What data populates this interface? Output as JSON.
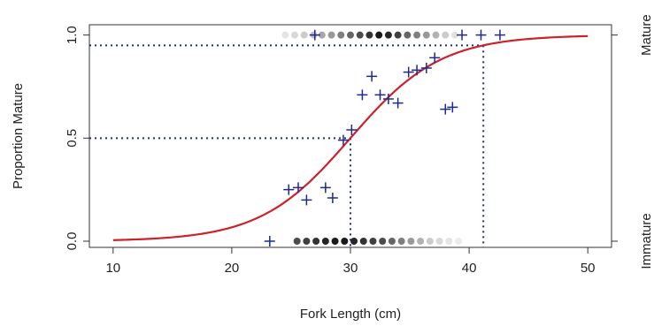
{
  "chart_data": {
    "type": "scatter",
    "title": "",
    "xlabel": "Fork Length (cm)",
    "ylabel": "Proportion Mature",
    "right_axis_labels": [
      "Immature",
      "Mature"
    ],
    "xlim": [
      8,
      52
    ],
    "ylim": [
      -0.03,
      1.05
    ],
    "x_ticks": [
      10,
      20,
      30,
      40,
      50
    ],
    "x_tick_labels": [
      "10",
      "20",
      "30",
      "40",
      "50"
    ],
    "y_ticks": [
      0.0,
      0.5,
      1.0
    ],
    "y_tick_labels": [
      "0.0",
      "0.5",
      "1.0"
    ],
    "grid": false,
    "colors": {
      "curve": "#cc2229",
      "points": "#1f2a8a",
      "reference": "#1f2a8a",
      "dots": "#000000"
    },
    "logistic_curve": {
      "x_start": 10,
      "x_end": 50,
      "L50": 30,
      "L95": 41.2
    },
    "reference_lines": [
      {
        "p": 0.5,
        "x": 30.0
      },
      {
        "p": 0.95,
        "x": 41.2
      }
    ],
    "proportion_points": [
      {
        "x": 23.2,
        "y": 0.0
      },
      {
        "x": 24.8,
        "y": 0.25
      },
      {
        "x": 25.6,
        "y": 0.26
      },
      {
        "x": 26.3,
        "y": 0.2
      },
      {
        "x": 27.0,
        "y": 1.0
      },
      {
        "x": 27.9,
        "y": 0.26
      },
      {
        "x": 28.5,
        "y": 0.21
      },
      {
        "x": 29.4,
        "y": 0.49
      },
      {
        "x": 30.1,
        "y": 0.54
      },
      {
        "x": 31.0,
        "y": 0.71
      },
      {
        "x": 31.8,
        "y": 0.8
      },
      {
        "x": 32.5,
        "y": 0.71
      },
      {
        "x": 33.2,
        "y": 0.69
      },
      {
        "x": 34.0,
        "y": 0.67
      },
      {
        "x": 34.9,
        "y": 0.82
      },
      {
        "x": 35.6,
        "y": 0.83
      },
      {
        "x": 36.4,
        "y": 0.84
      },
      {
        "x": 37.1,
        "y": 0.89
      },
      {
        "x": 38.0,
        "y": 0.64
      },
      {
        "x": 38.6,
        "y": 0.65
      },
      {
        "x": 39.4,
        "y": 1.0
      },
      {
        "x": 41.0,
        "y": 1.0
      },
      {
        "x": 42.6,
        "y": 1.0
      }
    ],
    "mature_dots": {
      "x": [
        24.5,
        25.3,
        26.1,
        26.9,
        27.6,
        28.4,
        29.2,
        30.0,
        30.8,
        31.6,
        32.4,
        33.2,
        34.0,
        34.8,
        35.6,
        36.4,
        37.2,
        38.0,
        38.8
      ],
      "opacity": [
        0.1,
        0.15,
        0.2,
        0.25,
        0.35,
        0.4,
        0.5,
        0.6,
        0.7,
        0.8,
        0.9,
        0.85,
        0.75,
        0.6,
        0.5,
        0.4,
        0.3,
        0.2,
        0.12
      ]
    },
    "immature_dots": {
      "x": [
        25.5,
        26.3,
        27.1,
        27.9,
        28.7,
        29.5,
        30.3,
        31.1,
        31.9,
        32.7,
        33.5,
        34.3,
        35.1,
        35.9,
        36.7,
        37.5,
        38.3,
        39.1
      ],
      "opacity": [
        0.7,
        0.75,
        0.8,
        0.85,
        0.9,
        0.9,
        0.85,
        0.8,
        0.75,
        0.7,
        0.6,
        0.5,
        0.4,
        0.3,
        0.2,
        0.15,
        0.1,
        0.08
      ]
    }
  }
}
